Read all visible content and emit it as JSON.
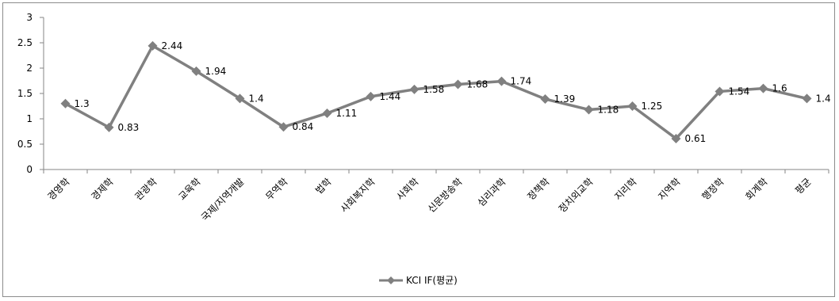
{
  "chart_data": {
    "type": "line",
    "categories": [
      "경영학",
      "경제학",
      "관광학",
      "교육학",
      "국제/지역개발",
      "무역학",
      "법학",
      "사회복지학",
      "사회학",
      "신문방송학",
      "심리과학",
      "정책학",
      "정치외교학",
      "지리학",
      "지역학",
      "행정학",
      "회계학",
      "평균"
    ],
    "series": [
      {
        "name": "KCI IF(평균)",
        "values": [
          1.3,
          0.83,
          2.44,
          1.94,
          1.4,
          0.84,
          1.11,
          1.44,
          1.58,
          1.68,
          1.74,
          1.39,
          1.18,
          1.25,
          0.61,
          1.54,
          1.6,
          1.4
        ],
        "color": "#808080"
      }
    ],
    "ylim": [
      0,
      3
    ],
    "yticks": [
      "0",
      "0.5",
      "1",
      "1.5",
      "2",
      "2.5",
      "3"
    ],
    "data_labels": [
      "1.3",
      "0.83",
      "2.44",
      "1.94",
      "1.4",
      "0.84",
      "1.11",
      "1.44",
      "1.58",
      "1.68",
      "1.74",
      "1.39",
      "1.18",
      "1.25",
      "0.61",
      "1.54",
      "1.6",
      "1.4"
    ],
    "grid": false,
    "legend_position": "bottom",
    "marker": "diamond"
  }
}
